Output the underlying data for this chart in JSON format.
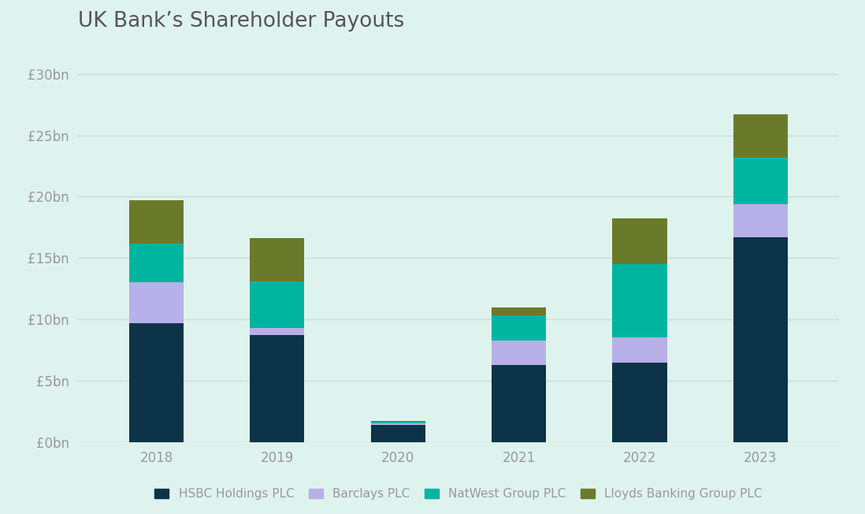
{
  "title": "UK Bank’s Shareholder Payouts",
  "years": [
    "2018",
    "2019",
    "2020",
    "2021",
    "2022",
    "2023"
  ],
  "series": {
    "HSBC Holdings PLC": [
      9.7,
      8.7,
      1.4,
      6.3,
      6.5,
      16.7
    ],
    "Barclays PLC": [
      3.3,
      0.6,
      0.1,
      2.0,
      2.0,
      2.7
    ],
    "NatWest Group PLC": [
      3.2,
      3.8,
      0.15,
      2.0,
      6.0,
      3.8
    ],
    "Lloyds Banking Group PLC": [
      3.5,
      3.5,
      0.05,
      0.7,
      3.7,
      3.5
    ]
  },
  "colors": {
    "HSBC Holdings PLC": "#0d3349",
    "Barclays PLC": "#b8b0e8",
    "NatWest Group PLC": "#00b5a0",
    "Lloyds Banking Group PLC": "#6b7a2a"
  },
  "yticks": [
    0,
    5,
    10,
    15,
    20,
    25,
    30
  ],
  "ytick_labels": [
    "£0bn",
    "£5bn",
    "£10bn",
    "£15bn",
    "£20bn",
    "£25bn",
    "£30bn"
  ],
  "ylim": [
    0,
    31
  ],
  "background_color": "#dff3ee",
  "grid_color": "#c8ddd9",
  "bar_width": 0.45,
  "title_fontsize": 19,
  "tick_fontsize": 12,
  "legend_fontsize": 11
}
